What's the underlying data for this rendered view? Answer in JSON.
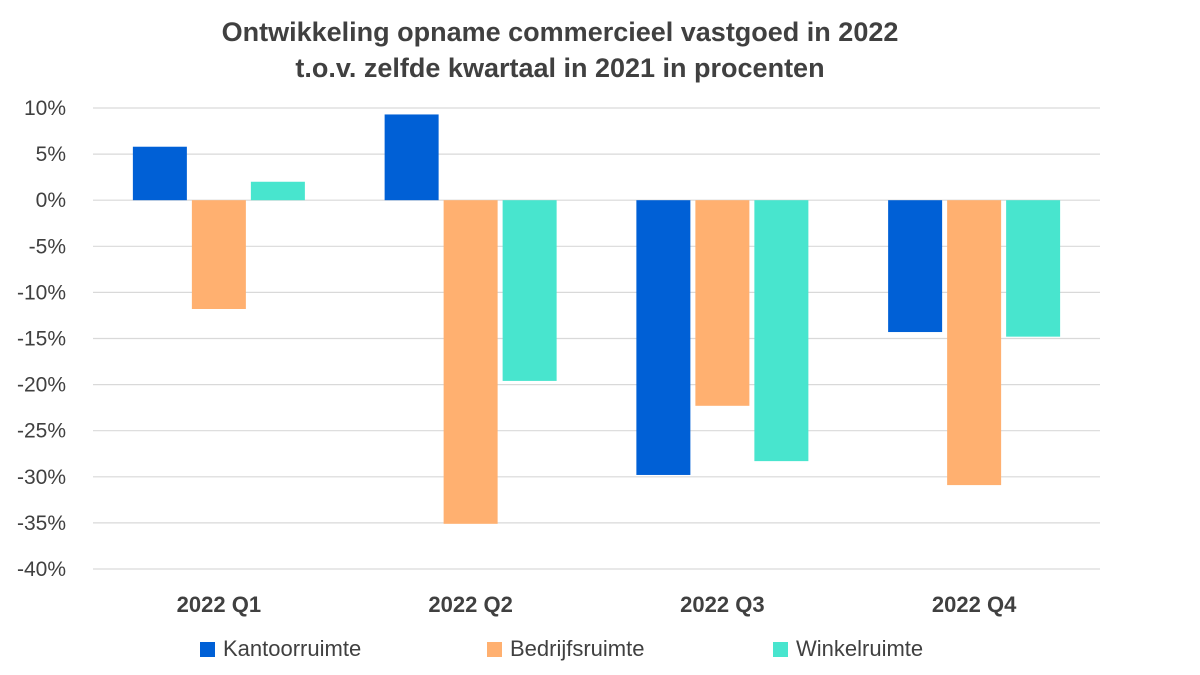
{
  "chart_data": {
    "type": "bar",
    "title_lines": [
      "Ontwikkeling opname commercieel vastgoed in 2022",
      "t.o.v. zelfde kwartaal in 2021 in procenten"
    ],
    "categories": [
      "2022 Q1",
      "2022 Q2",
      "2022 Q3",
      "2022 Q4"
    ],
    "series": [
      {
        "name": "Kantoorruimte",
        "color": "#0060D6",
        "values": [
          5.8,
          9.3,
          -29.8,
          -14.3
        ]
      },
      {
        "name": "Bedrijfsruimte",
        "color": "#FFB070",
        "values": [
          -11.8,
          -35.1,
          -22.3,
          -30.9
        ]
      },
      {
        "name": "Winkelruimte",
        "color": "#48E5CE",
        "values": [
          2.0,
          -19.6,
          -28.3,
          -14.8
        ]
      }
    ],
    "ylim": [
      -40,
      10
    ],
    "y_ticks": [
      10,
      5,
      0,
      -5,
      -10,
      -15,
      -20,
      -25,
      -30,
      -35,
      -40
    ],
    "y_tick_labels": [
      "10%",
      "5%",
      "0%",
      "-5%",
      "-10%",
      "-15%",
      "-20%",
      "-25%",
      "-30%",
      "-35%",
      "-40%"
    ],
    "grid": true,
    "legend_position": "bottom"
  }
}
